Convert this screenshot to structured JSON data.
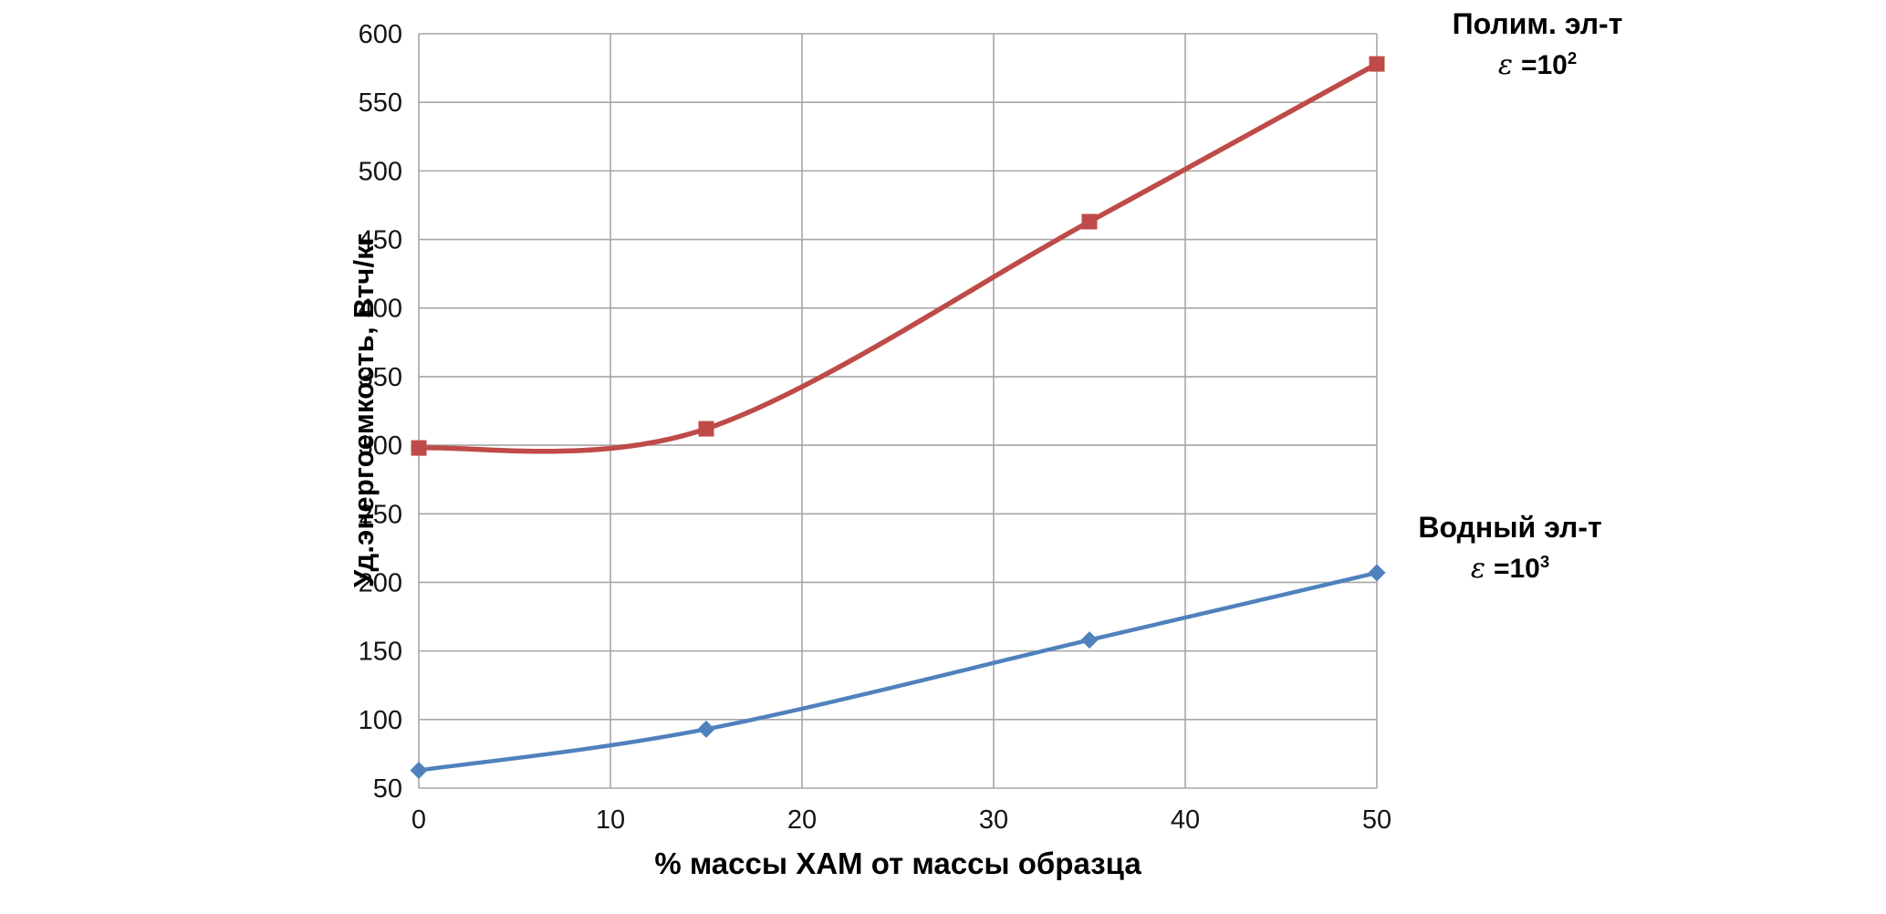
{
  "chart_data": {
    "type": "line",
    "title": "",
    "xlabel": "% массы ХАМ от массы образца",
    "ylabel": "Уд.энергоемкость, Втч/кг",
    "x": [
      0,
      15,
      35,
      50
    ],
    "series": [
      {
        "name": "Полим. эл-т",
        "values": [
          298,
          312,
          463,
          578
        ],
        "color": "#BE4B48",
        "marker": "square"
      },
      {
        "name": "Водный эл-т",
        "values": [
          63,
          93,
          158,
          207
        ],
        "color": "#4F81BD",
        "marker": "diamond"
      }
    ],
    "xlim": [
      0,
      50
    ],
    "ylim": [
      50,
      600
    ],
    "xticks": [
      0,
      10,
      20,
      30,
      40,
      50
    ],
    "yticks": [
      50,
      100,
      150,
      200,
      250,
      300,
      350,
      400,
      450,
      500,
      550,
      600
    ],
    "grid": true,
    "grid_color": "#A6A6A6",
    "legend_position": "right-annotations",
    "annotations": [
      {
        "name": "Полим. эл-т",
        "epsilon": "ε",
        "eq": "=10",
        "exp": "2"
      },
      {
        "name": "Водный эл-т",
        "epsilon": "ε",
        "eq": "=10",
        "exp": "3"
      }
    ]
  }
}
